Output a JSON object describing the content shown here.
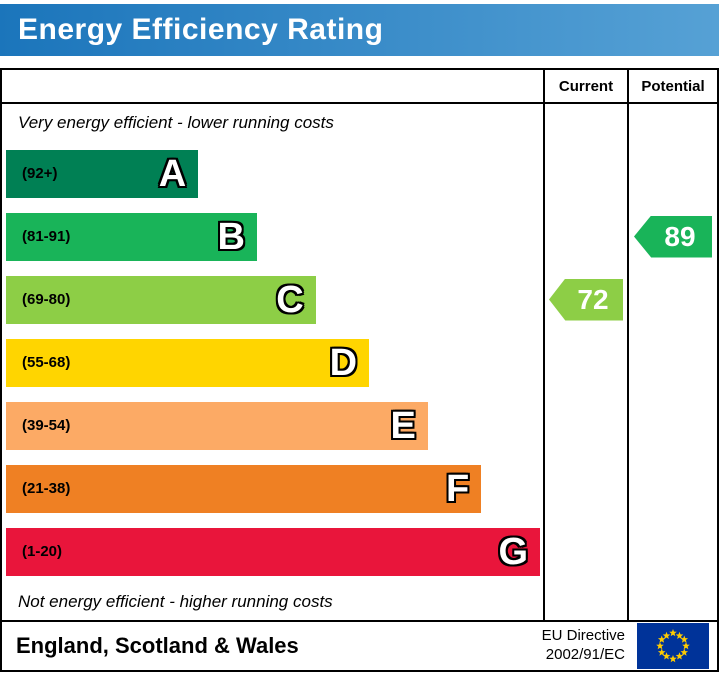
{
  "title": "Energy Efficiency Rating",
  "columns": {
    "current": "Current",
    "potential": "Potential"
  },
  "notes": {
    "top": "Very energy efficient - lower running costs",
    "bottom": "Not energy efficient - higher running costs"
  },
  "footer": {
    "region": "England, Scotland & Wales",
    "directive_line1": "EU Directive",
    "directive_line2": "2002/91/EC"
  },
  "colors": {
    "banner_left": "#1b75bb",
    "banner_right": "#56a1d5",
    "flag_blue": "#003399",
    "flag_star": "#ffcc00"
  },
  "chart_data": {
    "type": "bar",
    "title": "Energy Efficiency Rating",
    "xlabel": "",
    "ylabel": "",
    "legend": [
      "Current",
      "Potential"
    ],
    "bands": [
      {
        "letter": "A",
        "range": "(92+)",
        "min": 92,
        "max": 100,
        "color": "#008054",
        "width_pct": 36
      },
      {
        "letter": "B",
        "range": "(81-91)",
        "min": 81,
        "max": 91,
        "color": "#19b459",
        "width_pct": 47
      },
      {
        "letter": "C",
        "range": "(69-80)",
        "min": 69,
        "max": 80,
        "color": "#8dce46",
        "width_pct": 58
      },
      {
        "letter": "D",
        "range": "(55-68)",
        "min": 55,
        "max": 68,
        "color": "#ffd500",
        "width_pct": 68
      },
      {
        "letter": "E",
        "range": "(39-54)",
        "min": 39,
        "max": 54,
        "color": "#fcaa65",
        "width_pct": 79
      },
      {
        "letter": "F",
        "range": "(21-38)",
        "min": 21,
        "max": 38,
        "color": "#ef8023",
        "width_pct": 89
      },
      {
        "letter": "G",
        "range": "(1-20)",
        "min": 1,
        "max": 20,
        "color": "#e9153b",
        "width_pct": 100
      }
    ],
    "current": {
      "value": 72,
      "band": "C",
      "color": "#8dce46"
    },
    "potential": {
      "value": 89,
      "band": "B",
      "color": "#19b459"
    }
  }
}
